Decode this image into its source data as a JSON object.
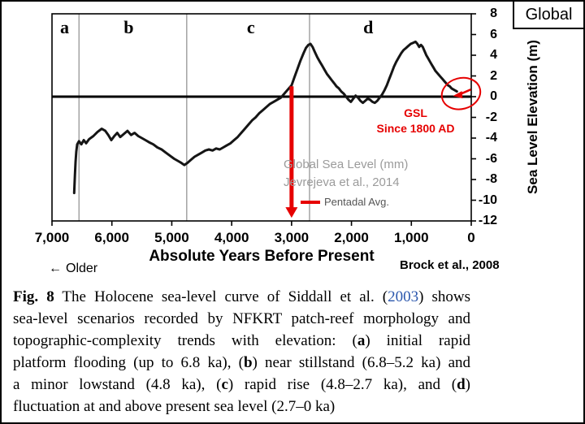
{
  "corner": {
    "label": "Global"
  },
  "chart_data": {
    "type": "line",
    "title": "",
    "xlabel": "Absolute Years Before Present",
    "ylabel": "Sea Level Elevation (m)",
    "xlim": [
      7000,
      0
    ],
    "ylim": [
      -12,
      8
    ],
    "grid": false,
    "reference_line_y": 0,
    "x_ticks": [
      {
        "value": 7000,
        "label": "7,000"
      },
      {
        "value": 6000,
        "label": "6,000"
      },
      {
        "value": 5000,
        "label": "5,000"
      },
      {
        "value": 4000,
        "label": "4,000"
      },
      {
        "value": 3000,
        "label": "3,000"
      },
      {
        "value": 2000,
        "label": "2,000"
      },
      {
        "value": 1000,
        "label": "1,000"
      },
      {
        "value": 0,
        "label": "0"
      }
    ],
    "y_ticks": [
      {
        "value": 8,
        "label": "8"
      },
      {
        "value": 6,
        "label": "6"
      },
      {
        "value": 4,
        "label": "4"
      },
      {
        "value": 2,
        "label": "2"
      },
      {
        "value": 0,
        "label": "0"
      },
      {
        "value": -2,
        "label": "-2"
      },
      {
        "value": -4,
        "label": "-4"
      },
      {
        "value": -6,
        "label": "-6"
      },
      {
        "value": -8,
        "label": "-8"
      },
      {
        "value": -10,
        "label": "-10"
      },
      {
        "value": -12,
        "label": "-12"
      }
    ],
    "zone_dividers_x": [
      6550,
      4750,
      2700
    ],
    "zone_labels": [
      {
        "label": "a",
        "x": 6790
      },
      {
        "label": "b",
        "x": 5720
      },
      {
        "label": "c",
        "x": 3680
      },
      {
        "label": "d",
        "x": 1720
      }
    ],
    "series": [
      {
        "name": "Holocene sea-level curve (Siddall et al. 2003)",
        "color": "#151515",
        "points": [
          [
            6630,
            -9.3
          ],
          [
            6618,
            -7.6
          ],
          [
            6606,
            -6.3
          ],
          [
            6594,
            -5.3
          ],
          [
            6580,
            -4.6
          ],
          [
            6550,
            -4.3
          ],
          [
            6510,
            -4.6
          ],
          [
            6470,
            -4.2
          ],
          [
            6430,
            -4.5
          ],
          [
            6380,
            -4.1
          ],
          [
            6310,
            -3.8
          ],
          [
            6240,
            -3.4
          ],
          [
            6170,
            -3.1
          ],
          [
            6110,
            -3.3
          ],
          [
            6060,
            -3.7
          ],
          [
            6010,
            -4.2
          ],
          [
            5960,
            -3.8
          ],
          [
            5910,
            -3.5
          ],
          [
            5860,
            -3.9
          ],
          [
            5800,
            -3.6
          ],
          [
            5740,
            -3.3
          ],
          [
            5680,
            -3.7
          ],
          [
            5620,
            -3.5
          ],
          [
            5560,
            -3.8
          ],
          [
            5500,
            -4.0
          ],
          [
            5440,
            -4.2
          ],
          [
            5380,
            -4.4
          ],
          [
            5310,
            -4.6
          ],
          [
            5240,
            -4.9
          ],
          [
            5170,
            -5.1
          ],
          [
            5100,
            -5.4
          ],
          [
            5030,
            -5.7
          ],
          [
            4960,
            -6.0
          ],
          [
            4900,
            -6.2
          ],
          [
            4840,
            -6.4
          ],
          [
            4790,
            -6.6
          ],
          [
            4740,
            -6.4
          ],
          [
            4680,
            -6.1
          ],
          [
            4620,
            -5.8
          ],
          [
            4560,
            -5.6
          ],
          [
            4500,
            -5.4
          ],
          [
            4440,
            -5.2
          ],
          [
            4380,
            -5.1
          ],
          [
            4320,
            -5.2
          ],
          [
            4260,
            -5.0
          ],
          [
            4200,
            -5.1
          ],
          [
            4140,
            -4.9
          ],
          [
            4080,
            -4.7
          ],
          [
            4020,
            -4.5
          ],
          [
            3960,
            -4.2
          ],
          [
            3900,
            -3.9
          ],
          [
            3840,
            -3.5
          ],
          [
            3780,
            -3.1
          ],
          [
            3720,
            -2.7
          ],
          [
            3660,
            -2.3
          ],
          [
            3600,
            -2.0
          ],
          [
            3540,
            -1.6
          ],
          [
            3480,
            -1.3
          ],
          [
            3420,
            -1.0
          ],
          [
            3360,
            -0.7
          ],
          [
            3300,
            -0.5
          ],
          [
            3240,
            -0.3
          ],
          [
            3180,
            -0.1
          ],
          [
            3120,
            0.3
          ],
          [
            3060,
            0.7
          ],
          [
            3000,
            1.1
          ],
          [
            2950,
            1.9
          ],
          [
            2900,
            2.7
          ],
          [
            2850,
            3.5
          ],
          [
            2800,
            4.2
          ],
          [
            2760,
            4.7
          ],
          [
            2720,
            5.0
          ],
          [
            2685,
            5.1
          ],
          [
            2650,
            4.8
          ],
          [
            2610,
            4.3
          ],
          [
            2570,
            3.8
          ],
          [
            2530,
            3.4
          ],
          [
            2490,
            3.0
          ],
          [
            2450,
            2.6
          ],
          [
            2410,
            2.2
          ],
          [
            2370,
            1.9
          ],
          [
            2330,
            1.6
          ],
          [
            2290,
            1.3
          ],
          [
            2250,
            1.0
          ],
          [
            2210,
            0.8
          ],
          [
            2170,
            0.5
          ],
          [
            2130,
            0.3
          ],
          [
            2090,
            0.0
          ],
          [
            2050,
            -0.3
          ],
          [
            2010,
            -0.5
          ],
          [
            1970,
            -0.2
          ],
          [
            1930,
            0.1
          ],
          [
            1890,
            -0.1
          ],
          [
            1850,
            -0.4
          ],
          [
            1810,
            -0.6
          ],
          [
            1770,
            -0.4
          ],
          [
            1730,
            -0.2
          ],
          [
            1690,
            -0.3
          ],
          [
            1650,
            -0.5
          ],
          [
            1610,
            -0.6
          ],
          [
            1570,
            -0.4
          ],
          [
            1530,
            -0.1
          ],
          [
            1490,
            0.2
          ],
          [
            1450,
            0.6
          ],
          [
            1410,
            1.1
          ],
          [
            1370,
            1.7
          ],
          [
            1330,
            2.3
          ],
          [
            1290,
            2.9
          ],
          [
            1250,
            3.4
          ],
          [
            1210,
            3.8
          ],
          [
            1170,
            4.2
          ],
          [
            1130,
            4.5
          ],
          [
            1090,
            4.7
          ],
          [
            1050,
            4.9
          ],
          [
            1010,
            5.1
          ],
          [
            970,
            5.2
          ],
          [
            930,
            5.3
          ],
          [
            900,
            5.1
          ],
          [
            870,
            4.8
          ],
          [
            840,
            5.0
          ],
          [
            810,
            4.8
          ],
          [
            780,
            4.4
          ],
          [
            750,
            4.0
          ],
          [
            720,
            3.7
          ],
          [
            690,
            3.4
          ],
          [
            660,
            3.1
          ],
          [
            630,
            2.8
          ],
          [
            600,
            2.5
          ],
          [
            570,
            2.3
          ],
          [
            540,
            2.1
          ],
          [
            510,
            1.9
          ],
          [
            480,
            1.7
          ],
          [
            450,
            1.5
          ],
          [
            420,
            1.3
          ],
          [
            390,
            1.1
          ],
          [
            360,
            1.0
          ],
          [
            330,
            0.8
          ],
          [
            300,
            0.7
          ],
          [
            270,
            0.6
          ],
          [
            240,
            0.5
          ]
        ]
      }
    ],
    "annotations": {
      "red_arrow": {
        "x": 3000,
        "y_top": 1.0,
        "y_bottom": -11.7,
        "color": "#e60000"
      },
      "gsl_circle": {
        "x": 170,
        "y": 0.3,
        "color": "#e60000",
        "label_line1": "GSL",
        "label_line2": "Since 1800 AD"
      },
      "inset_text_line1": "Global Sea Level (mm)",
      "inset_text_line2": "Jevrejeva et al., 2014",
      "legend_label": "Pentadal Avg.",
      "older_arrow": "←",
      "older_label": "Older",
      "credit_label": "Brock et al., 2008"
    }
  },
  "caption": {
    "link_color": "#2b57ad",
    "lines": [
      [
        {
          "t": "Fig. 8",
          "b": true
        },
        {
          "t": " The Holocene sea-level curve of Siddall et al. ("
        },
        {
          "t": "2003",
          "link": true
        },
        {
          "t": ") shows"
        }
      ],
      [
        {
          "t": "sea-level scenarios recorded by NFKRT patch-reef morphology and"
        }
      ],
      [
        {
          "t": "topographic-complexity trends with elevation: ("
        },
        {
          "t": "a",
          "b": true
        },
        {
          "t": ") initial rapid"
        }
      ],
      [
        {
          "t": "platform flooding (up to 6.8 ka), ("
        },
        {
          "t": "b",
          "b": true
        },
        {
          "t": ") near stillstand (6.8–5.2 ka) and"
        }
      ],
      [
        {
          "t": "a minor lowstand (4.8 ka), ("
        },
        {
          "t": "c",
          "b": true
        },
        {
          "t": ") rapid rise (4.8–2.7 ka), and ("
        },
        {
          "t": "d",
          "b": true
        },
        {
          "t": ")"
        }
      ],
      [
        {
          "t": "fluctuation at and above present sea level (2.7–0 ka)"
        }
      ]
    ]
  }
}
